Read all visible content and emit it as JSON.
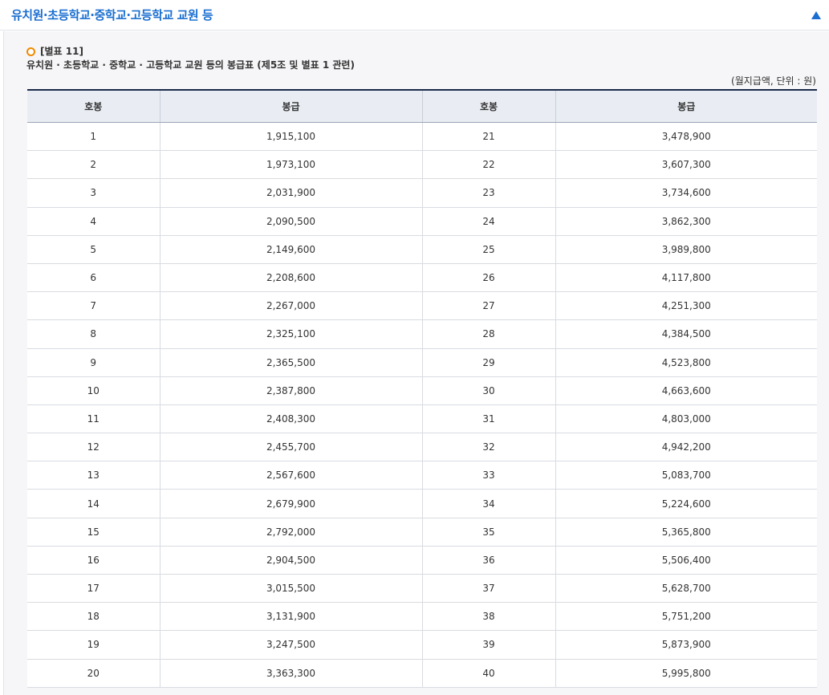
{
  "section": {
    "title": "유치원·초등학교·중학교·고등학교 교원 등",
    "collapse_icon": "triangle-up-icon",
    "accent_color": "#1b6fd1"
  },
  "caption": {
    "annex": "[별표 11]",
    "title": "유치원 · 초등학교 · 중학교 · 고등학교 교원 등의 봉급표 (제5조 및 별표 1 관련)",
    "bullet_icon": "circle-bullet-icon",
    "bullet_color": "#f08a00"
  },
  "unit_note": "(월지급액, 단위 : 원)",
  "table": {
    "headers": [
      "호봉",
      "봉급",
      "호봉",
      "봉급"
    ],
    "rows": [
      [
        "1",
        "1,915,100",
        "21",
        "3,478,900"
      ],
      [
        "2",
        "1,973,100",
        "22",
        "3,607,300"
      ],
      [
        "3",
        "2,031,900",
        "23",
        "3,734,600"
      ],
      [
        "4",
        "2,090,500",
        "24",
        "3,862,300"
      ],
      [
        "5",
        "2,149,600",
        "25",
        "3,989,800"
      ],
      [
        "6",
        "2,208,600",
        "26",
        "4,117,800"
      ],
      [
        "7",
        "2,267,000",
        "27",
        "4,251,300"
      ],
      [
        "8",
        "2,325,100",
        "28",
        "4,384,500"
      ],
      [
        "9",
        "2,365,500",
        "29",
        "4,523,800"
      ],
      [
        "10",
        "2,387,800",
        "30",
        "4,663,600"
      ],
      [
        "11",
        "2,408,300",
        "31",
        "4,803,000"
      ],
      [
        "12",
        "2,455,700",
        "32",
        "4,942,200"
      ],
      [
        "13",
        "2,567,600",
        "33",
        "5,083,700"
      ],
      [
        "14",
        "2,679,900",
        "34",
        "5,224,600"
      ],
      [
        "15",
        "2,792,000",
        "35",
        "5,365,800"
      ],
      [
        "16",
        "2,904,500",
        "36",
        "5,506,400"
      ],
      [
        "17",
        "3,015,500",
        "37",
        "5,628,700"
      ],
      [
        "18",
        "3,131,900",
        "38",
        "5,751,200"
      ],
      [
        "19",
        "3,247,500",
        "39",
        "5,873,900"
      ],
      [
        "20",
        "3,363,300",
        "40",
        "5,995,800"
      ]
    ]
  }
}
